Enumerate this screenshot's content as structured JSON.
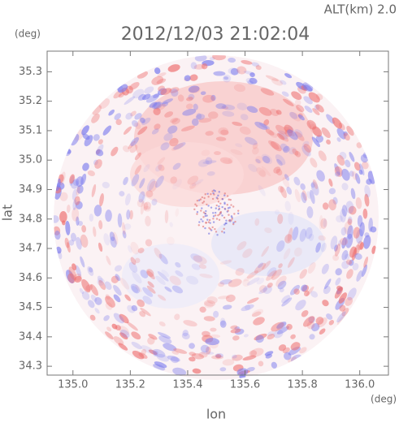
{
  "chart_data": {
    "type": "radar-ppi",
    "altitude_label": "ALT(km)  2.0",
    "title": "2012/12/03 21:02:04",
    "y_unit": "(deg)",
    "x_unit": "(deg)",
    "ylabel": "lat",
    "xlabel": "lon",
    "xlim": [
      134.91,
      136.1
    ],
    "ylim": [
      34.27,
      35.37
    ],
    "xticks": [
      {
        "value": 135,
        "label": "135.0"
      },
      135.2,
      135.4,
      135.6,
      135.8,
      {
        "value": 136,
        "label": "136.0"
      }
    ],
    "yticks": [
      34.3,
      34.4,
      34.5,
      34.6,
      34.7,
      34.8,
      34.9,
      {
        "value": 35,
        "label": "35.0"
      },
      35.1,
      35.2,
      35.3
    ]
  }
}
